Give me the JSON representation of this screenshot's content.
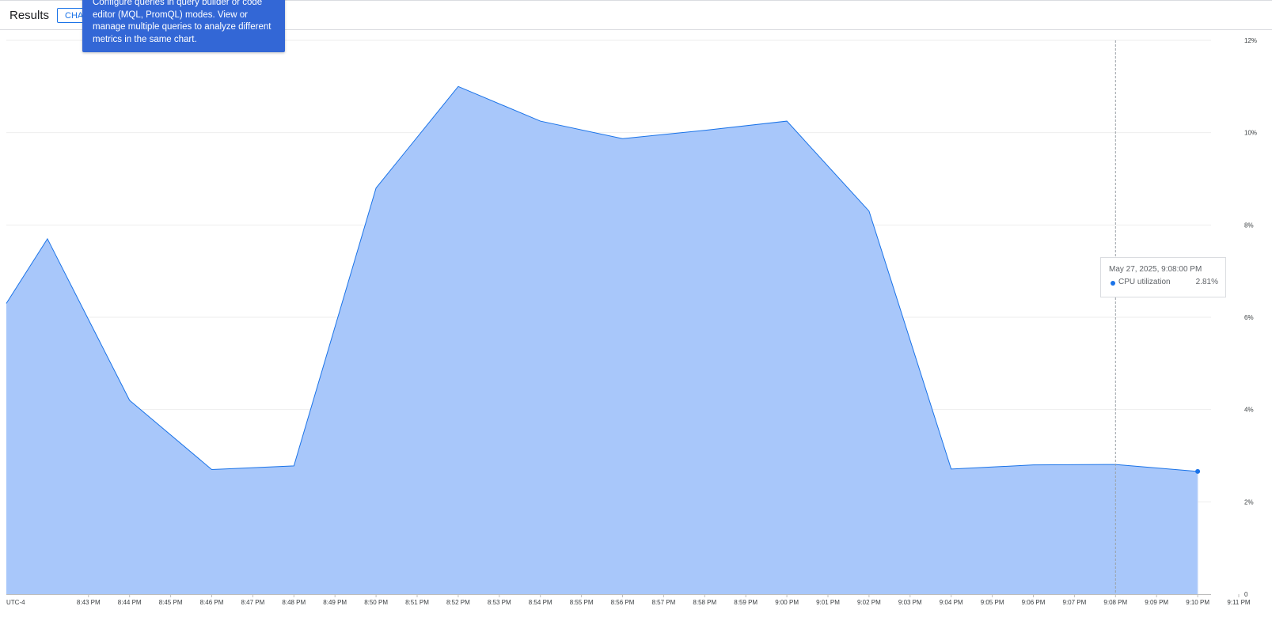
{
  "header": {
    "title": "Results",
    "chip_label": "CHA",
    "banner_text": "Configure queries in query builder or code editor (MQL, PromQL) modes. View or manage multiple queries to analyze different metrics in the same chart."
  },
  "hover": {
    "time": "May 27, 2025, 9:08:00 PM",
    "series": "CPU utilization",
    "value": "2.81%"
  },
  "colors": {
    "line": "#1a73e8",
    "fill": "#a8c7fa",
    "grid": "#eeeeee"
  },
  "chart_data": {
    "type": "area",
    "timezone_label": "UTC-4",
    "x_ticks": [
      "8:43 PM",
      "8:44 PM",
      "8:45 PM",
      "8:46 PM",
      "8:47 PM",
      "8:48 PM",
      "8:49 PM",
      "8:50 PM",
      "8:51 PM",
      "8:52 PM",
      "8:53 PM",
      "8:54 PM",
      "8:55 PM",
      "8:56 PM",
      "8:57 PM",
      "8:58 PM",
      "8:59 PM",
      "9:00 PM",
      "9:01 PM",
      "9:02 PM",
      "9:03 PM",
      "9:04 PM",
      "9:05 PM",
      "9:06 PM",
      "9:07 PM",
      "9:08 PM",
      "9:09 PM",
      "9:10 PM",
      "9:11 PM"
    ],
    "y_ticks": [
      "0",
      "2%",
      "4%",
      "6%",
      "8%",
      "10%",
      "12%"
    ],
    "ylim": [
      0,
      12
    ],
    "series": [
      {
        "name": "CPU utilization",
        "x": [
          "8:41 PM",
          "8:42 PM",
          "8:44 PM",
          "8:46 PM",
          "8:48 PM",
          "8:50 PM",
          "8:52 PM",
          "8:54 PM",
          "8:56 PM",
          "8:58 PM",
          "9:00 PM",
          "9:02 PM",
          "9:04 PM",
          "9:06 PM",
          "9:08 PM",
          "9:10 PM"
        ],
        "y": [
          6.3,
          7.7,
          4.2,
          2.7,
          2.78,
          8.8,
          11.0,
          10.25,
          9.87,
          10.05,
          10.25,
          8.3,
          2.71,
          2.8,
          2.81,
          2.66
        ]
      }
    ],
    "hover_time": "9:08 PM",
    "grid": true,
    "legend": "none"
  }
}
